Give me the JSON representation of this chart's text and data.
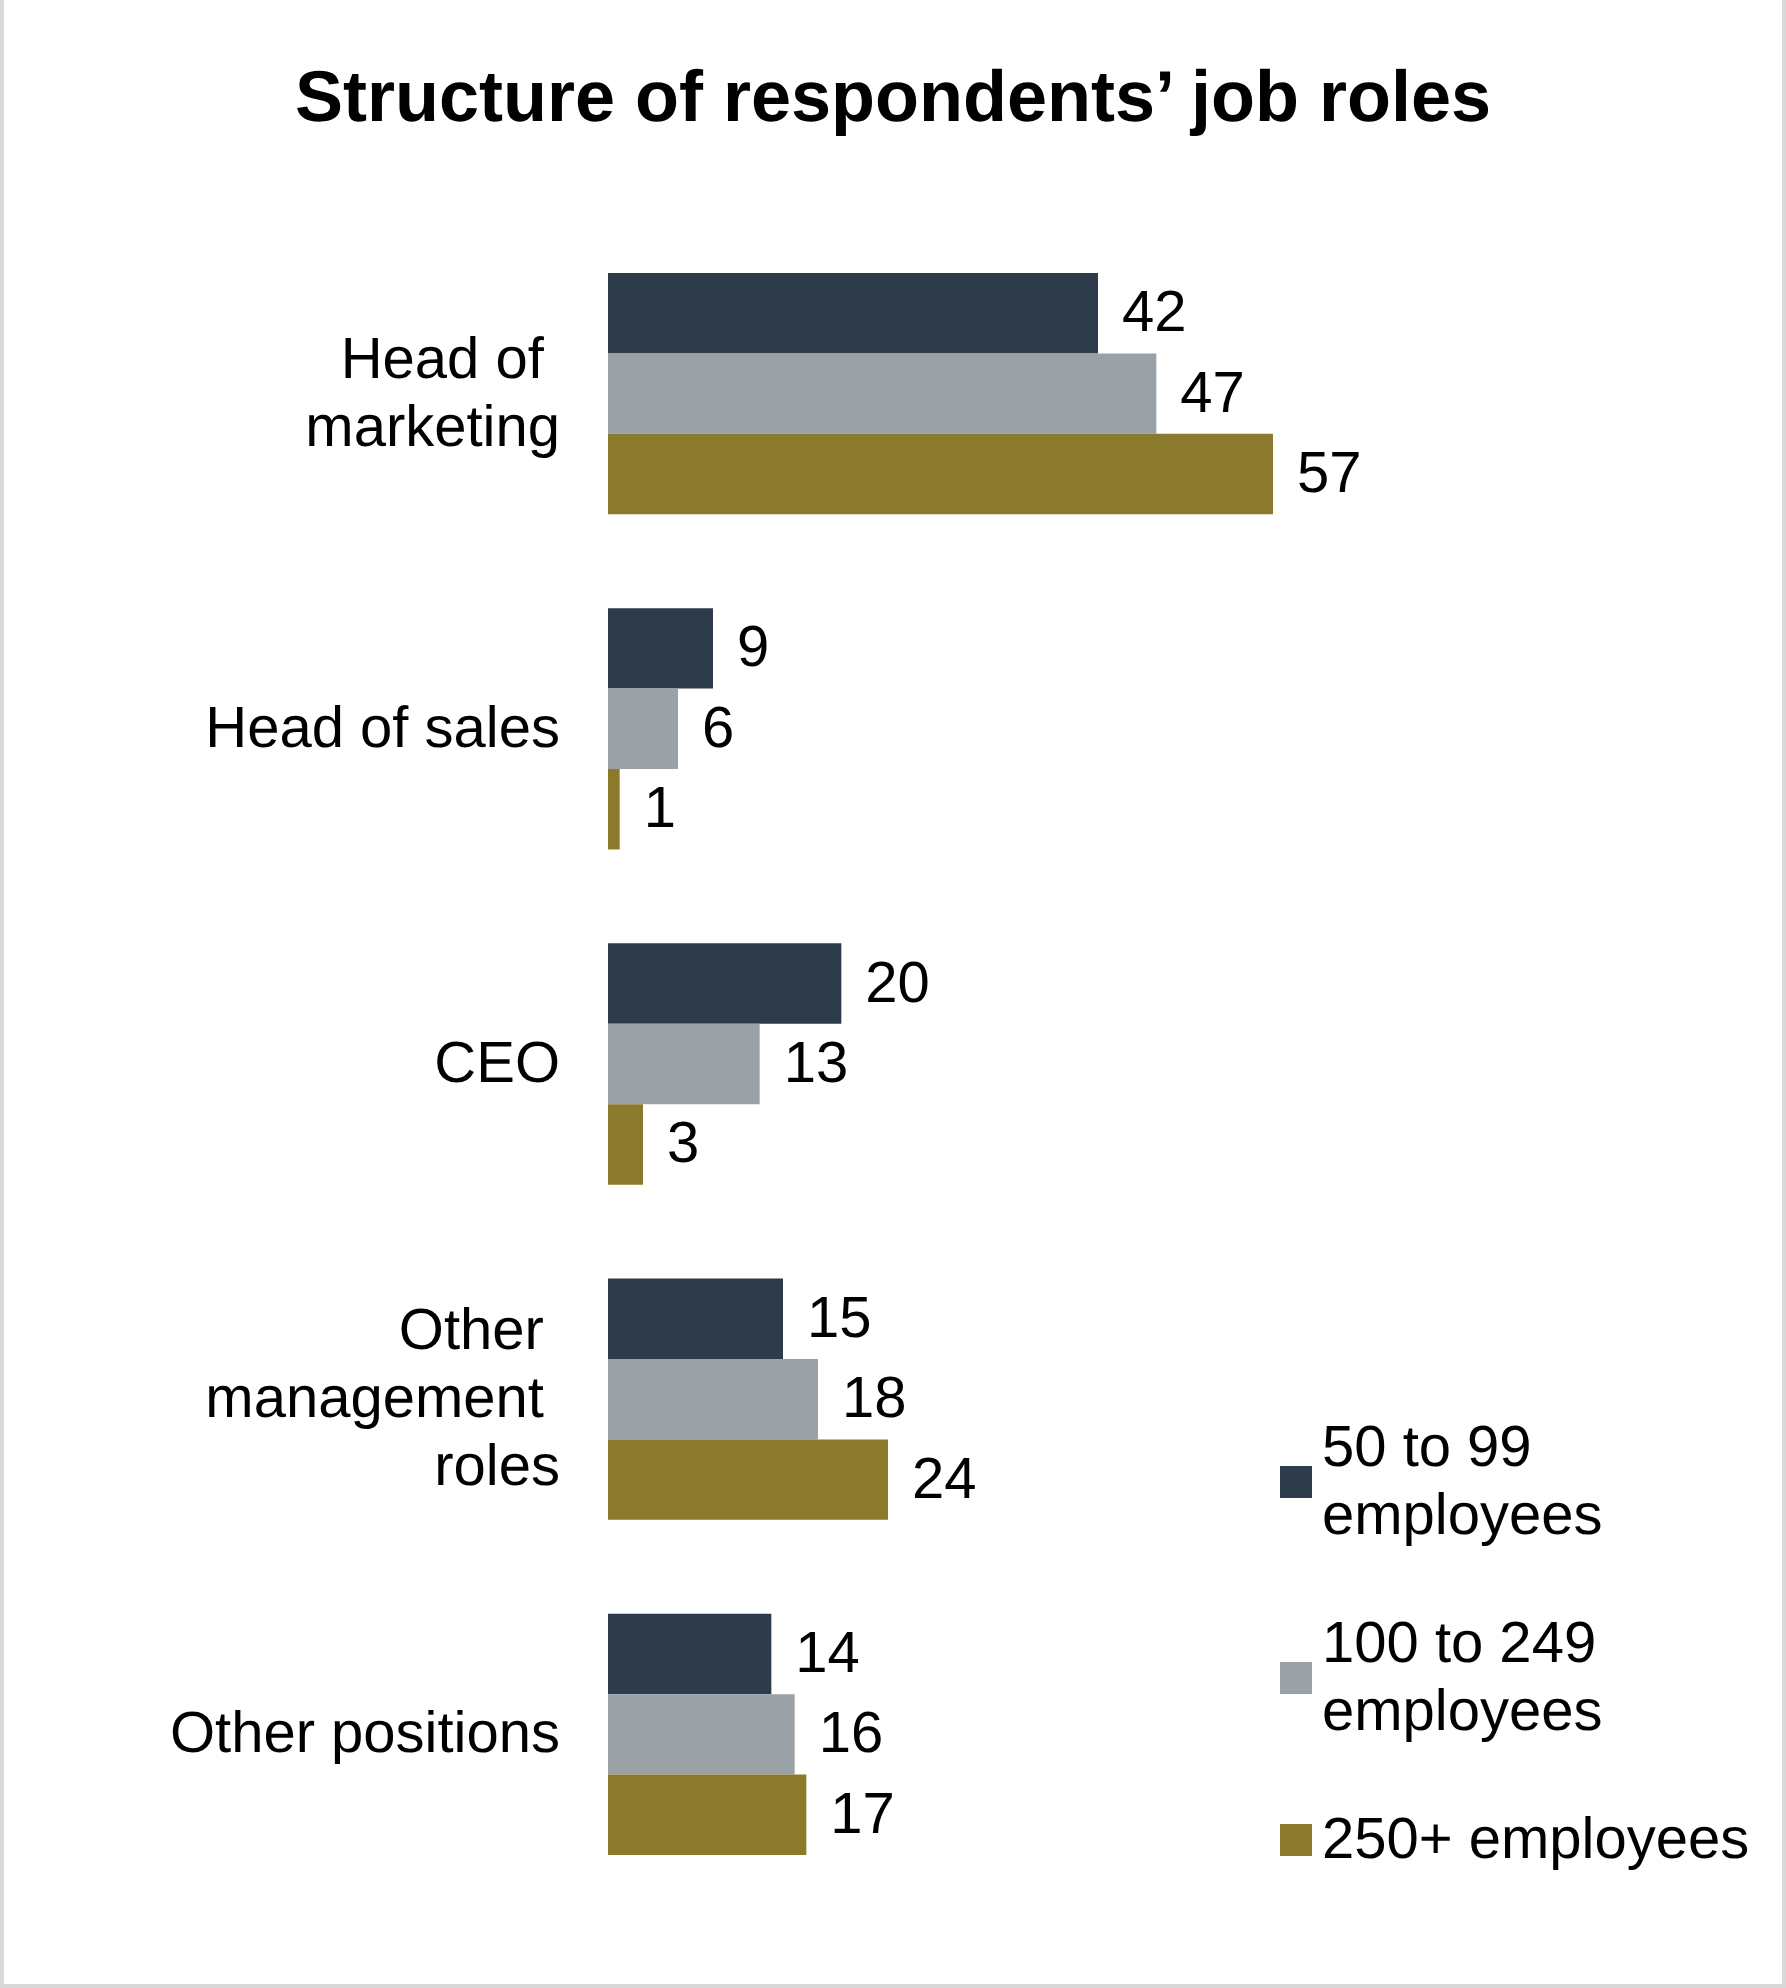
{
  "chart_data": {
    "type": "bar",
    "orientation": "horizontal",
    "title": "Structure of respondents’ job roles",
    "categories": [
      "Head of marketing",
      "Head of sales",
      "CEO",
      "Other management roles",
      "Other positions"
    ],
    "series": [
      {
        "name": "50 to 99 employees",
        "color": "#2e3b4a",
        "values": [
          42,
          9,
          20,
          15,
          14
        ]
      },
      {
        "name": "100 to 249 employees",
        "color": "#9ba2a7",
        "values": [
          47,
          6,
          13,
          18,
          16
        ]
      },
      {
        "name": "250+ employees",
        "color": "#8b7a2b",
        "values": [
          57,
          1,
          3,
          24,
          17
        ]
      }
    ],
    "data_labels": true,
    "legend": "bottom right"
  }
}
